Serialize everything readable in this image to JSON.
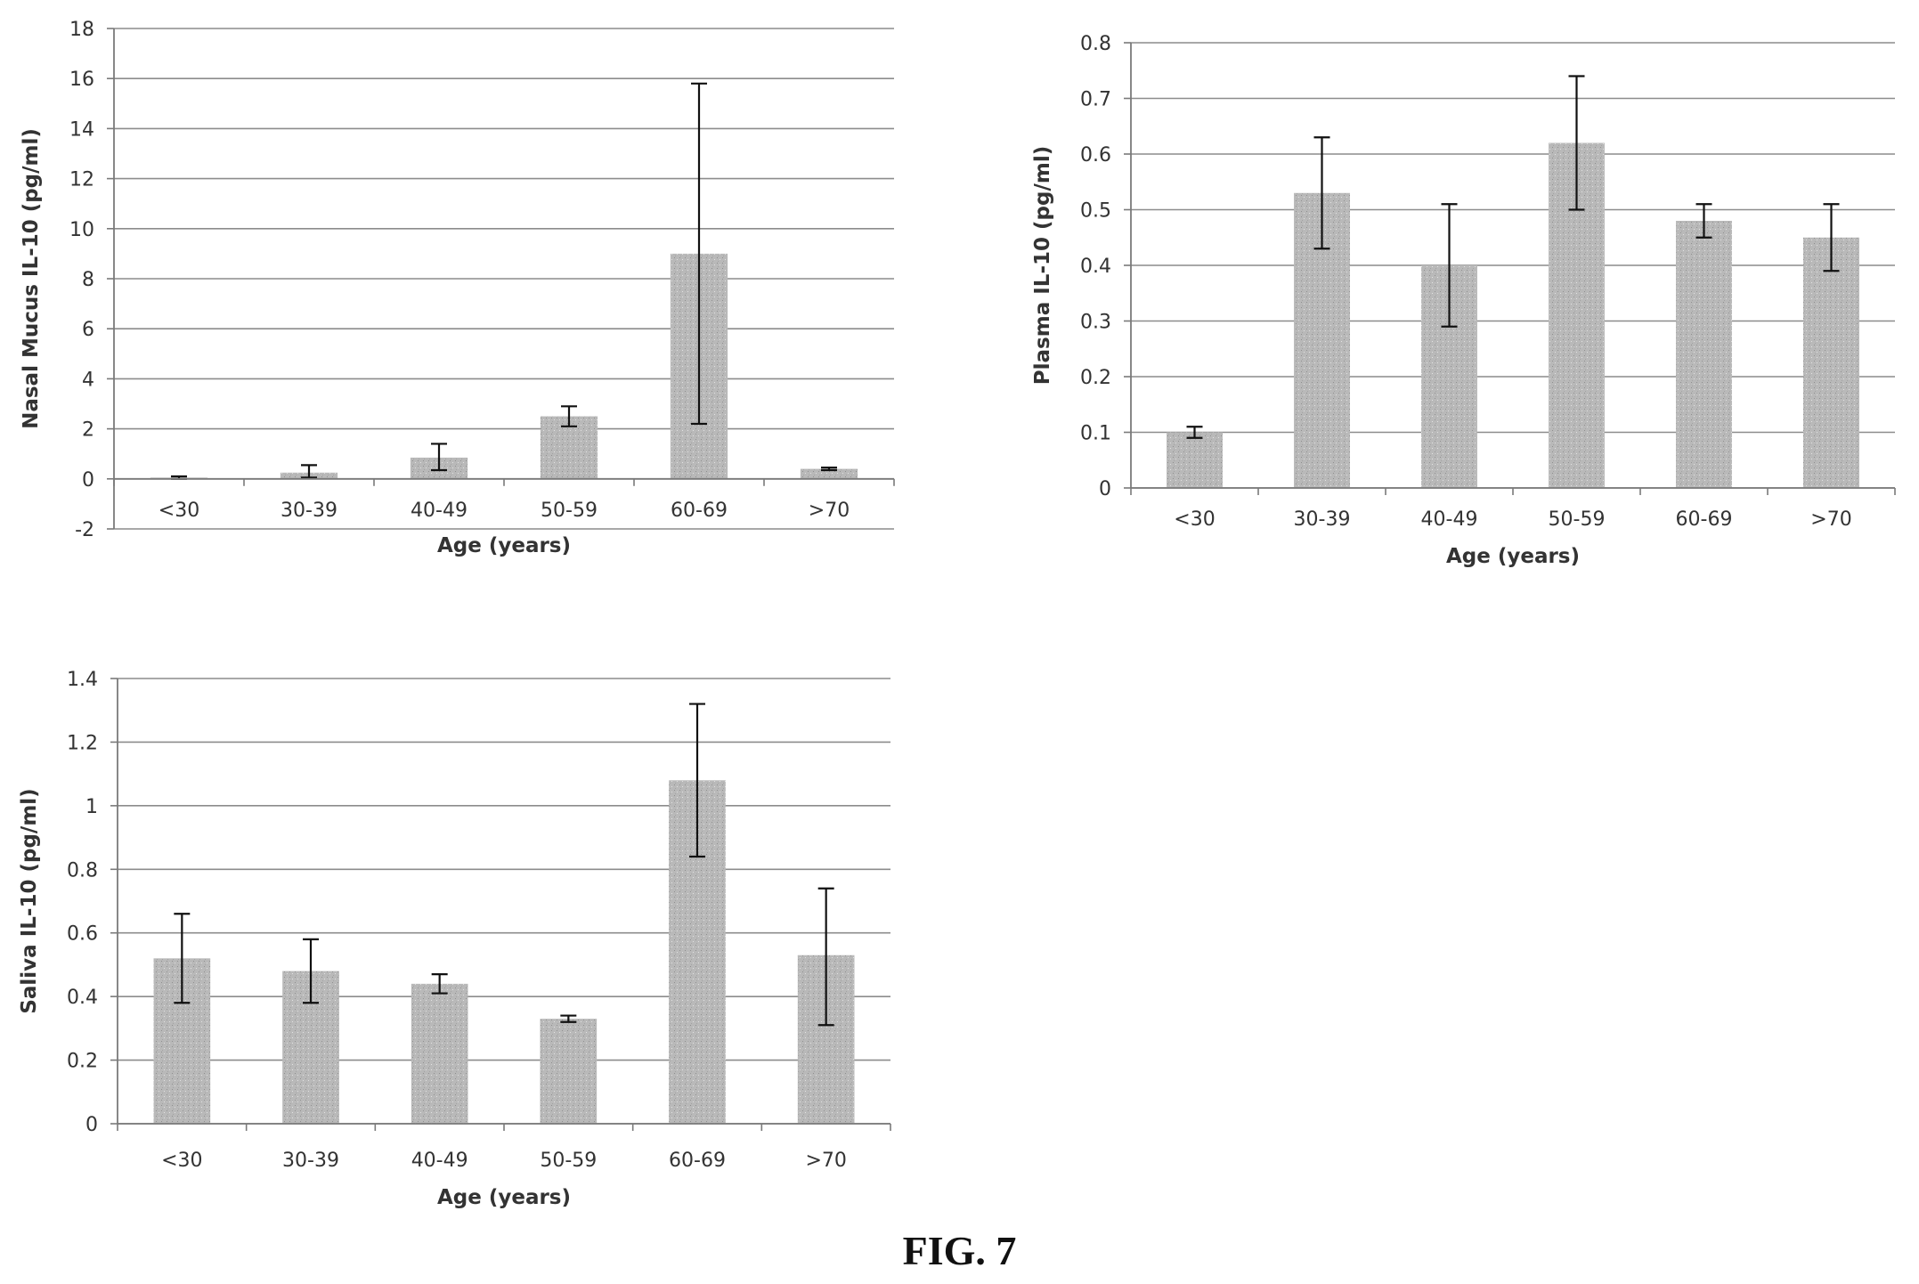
{
  "figure": {
    "caption": "FIG. 7"
  },
  "colors": {
    "bar": "#b9b9b9",
    "grid": "#8c8c8c",
    "axis": "#7a7a7a",
    "error_bar": "#111111"
  },
  "chart_data": [
    {
      "type": "bar",
      "panel": "top-left",
      "title": "",
      "xlabel": "Age (years)",
      "ylabel": "Nasal Mucus IL-10 (pg/ml)",
      "categories": [
        "<30",
        "30-39",
        "40-49",
        "50-59",
        "60-69",
        ">70"
      ],
      "values": [
        0.05,
        0.25,
        0.85,
        2.5,
        9.0,
        0.4
      ],
      "error_low": [
        0.0,
        0.05,
        0.35,
        2.1,
        2.2,
        0.35
      ],
      "error_high": [
        0.1,
        0.55,
        1.4,
        2.9,
        15.8,
        0.45
      ],
      "ylim": [
        -2,
        18
      ],
      "yticks": [
        -2,
        0,
        2,
        4,
        6,
        8,
        10,
        12,
        14,
        16,
        18
      ],
      "ytick_labels": [
        "-2",
        "0",
        "2",
        "4",
        "6",
        "8",
        "10",
        "12",
        "14",
        "16",
        "18"
      ],
      "grid": true,
      "legend": "none"
    },
    {
      "type": "bar",
      "panel": "top-right",
      "title": "",
      "xlabel": "Age (years)",
      "ylabel": "Plasma IL-10 (pg/ml)",
      "categories": [
        "<30",
        "30-39",
        "40-49",
        "50-59",
        "60-69",
        ">70"
      ],
      "values": [
        0.1,
        0.53,
        0.4,
        0.62,
        0.48,
        0.45
      ],
      "error_low": [
        0.09,
        0.43,
        0.29,
        0.5,
        0.45,
        0.39
      ],
      "error_high": [
        0.11,
        0.63,
        0.51,
        0.74,
        0.51,
        0.51
      ],
      "ylim": [
        0,
        0.8
      ],
      "yticks": [
        0,
        0.1,
        0.2,
        0.3,
        0.4,
        0.5,
        0.6,
        0.7,
        0.8
      ],
      "ytick_labels": [
        "0",
        "0.1",
        "0.2",
        "0.3",
        "0.4",
        "0.5",
        "0.6",
        "0.7",
        "0.8"
      ],
      "grid": true,
      "legend": "none"
    },
    {
      "type": "bar",
      "panel": "bottom-left",
      "title": "",
      "xlabel": "Age (years)",
      "ylabel": "Saliva IL-10 (pg/ml)",
      "categories": [
        "<30",
        "30-39",
        "40-49",
        "50-59",
        "60-69",
        ">70"
      ],
      "values": [
        0.52,
        0.48,
        0.44,
        0.33,
        1.08,
        0.53
      ],
      "error_low": [
        0.38,
        0.38,
        0.41,
        0.32,
        0.84,
        0.31
      ],
      "error_high": [
        0.66,
        0.58,
        0.47,
        0.34,
        1.32,
        0.74
      ],
      "ylim": [
        0,
        1.4
      ],
      "yticks": [
        0,
        0.2,
        0.4,
        0.6,
        0.8,
        1.0,
        1.2,
        1.4
      ],
      "ytick_labels": [
        "0",
        "0.2",
        "0.4",
        "0.6",
        "0.8",
        "1",
        "1.2",
        "1.4"
      ],
      "grid": true,
      "legend": "none"
    }
  ]
}
